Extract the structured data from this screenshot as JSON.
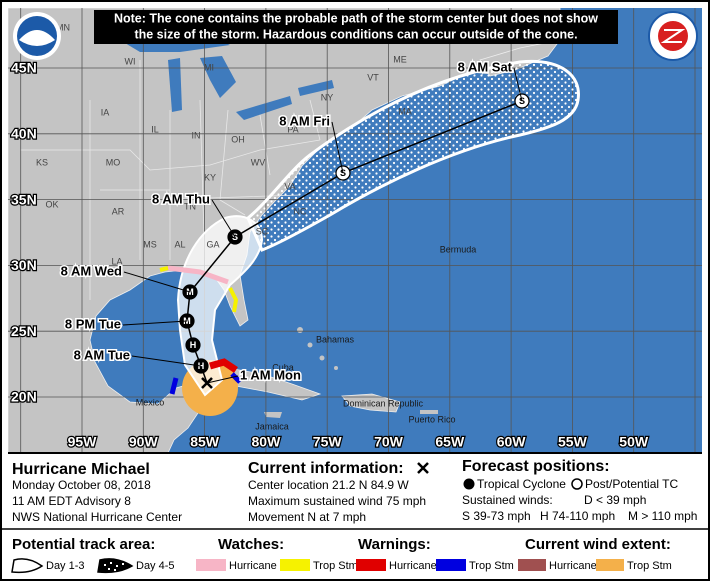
{
  "note": [
    "Note: The cone contains the probable path of the storm center but does not show",
    "the size of the storm. Hazardous conditions can occur outside of the cone."
  ],
  "map": {
    "lat_labels": [
      "45N",
      "40N",
      "35N",
      "30N",
      "25N",
      "20N"
    ],
    "lon_labels": [
      "95W",
      "90W",
      "85W",
      "80W",
      "75W",
      "70W",
      "65W",
      "60W",
      "55W",
      "50W"
    ],
    "state_labels": [
      "MN",
      "WI",
      "MI",
      "IA",
      "IL",
      "IN",
      "OH",
      "PA",
      "NY",
      "ME",
      "VT",
      "MA",
      "KS",
      "MO",
      "KY",
      "WV",
      "VA",
      "OK",
      "AR",
      "TN",
      "NC",
      "SC",
      "MS",
      "AL",
      "GA",
      "LA"
    ],
    "place_labels": [
      "Bermuda",
      "Bahamas",
      "Cuba",
      "Mexico",
      "Jamaica",
      "Dominican Republic",
      "Puerto Rico"
    ],
    "forecast_labels": [
      "1 AM Mon",
      "8 AM Tue",
      "8 PM Tue",
      "8 AM Wed",
      "8 AM Thu",
      "8 AM Fri",
      "8 AM Sat"
    ],
    "point_symbols": [
      "H",
      "H",
      "M",
      "M",
      "S",
      "S",
      "S"
    ]
  },
  "storm": {
    "name": "Hurricane Michael",
    "date": "Monday October 08, 2018",
    "advisory": "11 AM EDT Advisory 8",
    "center": "NWS National Hurricane Center"
  },
  "current": {
    "title": "Current information:",
    "lines": [
      "Center location 21.2 N 84.9 W",
      "Maximum sustained wind 75 mph",
      "Movement N at 7 mph"
    ]
  },
  "forecast": {
    "title": "Forecast positions:",
    "tropical": "Tropical Cyclone",
    "post": "Post/Potential TC",
    "winds_title": "Sustained winds:",
    "d": "D < 39 mph",
    "s": "S 39-73 mph",
    "h": "H 74-110 mph",
    "m": "M > 110 mph"
  },
  "legend": {
    "track_title": "Potential track area:",
    "day13": "Day 1-3",
    "day45": "Day 4-5",
    "watches_title": "Watches:",
    "watch_hurricane": "Hurricane",
    "watch_tropstm": "Trop Stm",
    "warnings_title": "Warnings:",
    "warn_hurricane": "Hurricane",
    "warn_tropstm": "Trop Stm",
    "wind_title": "Current wind extent:",
    "wind_hurricane": "Hurricane",
    "wind_tropstm": "Trop Stm"
  }
}
